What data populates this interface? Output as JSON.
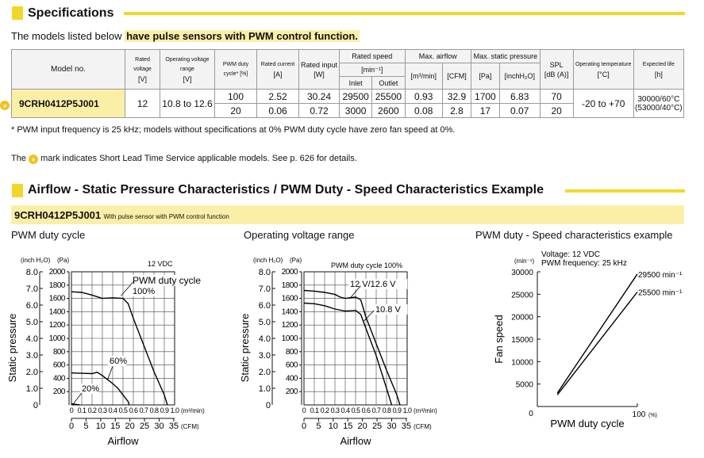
{
  "spec_section": {
    "title": "Specifications"
  },
  "intro": {
    "text": "The models listed below ",
    "highlight": "have pulse sensors with PWM control function."
  },
  "table": {
    "headers": {
      "model_no": "Model no.",
      "rated_voltage": "Rated voltage",
      "rated_voltage_unit": "[V]",
      "op_voltage": "Operating voltage range",
      "op_voltage_unit": "[V]",
      "pwm_duty": "PWM duty",
      "pwm_duty_unit": "cycle* [%]",
      "rated_current": "Rated current",
      "rated_current_unit": "[A]",
      "rated_input": "Rated input",
      "rated_input_unit": "[W]",
      "rated_speed": "Rated speed",
      "rated_speed_unit": "[min⁻¹]",
      "inlet": "Inlet",
      "outlet": "Outlet",
      "max_airflow": "Max. airflow",
      "airflow_unit1": "[m³/min]",
      "airflow_unit2": "[CFM]",
      "max_static": "Max. static pressure",
      "static_unit1": "[Pa]",
      "static_unit2": "[inchH₂O]",
      "spl": "SPL",
      "spl_unit": "[dB (A)]",
      "op_temp": "Operating temperature",
      "op_temp_unit": "[°C]",
      "life": "Expected life",
      "life_unit": "[h]"
    },
    "model": "9CRH0412P5J001",
    "rated_voltage": "12",
    "op_voltage": "10.8 to 12.6",
    "op_temp": "-20 to +70",
    "life1": "30000/60°C",
    "life2": "(53000/40°C)",
    "rows": [
      {
        "pwm": "100",
        "current": "2.52",
        "input": "30.24",
        "inlet": "29500",
        "outlet": "25500",
        "airflow_m3": "0.93",
        "airflow_cfm": "32.9",
        "pa": "1700",
        "inch": "6.83",
        "spl": "70"
      },
      {
        "pwm": "20",
        "current": "0.06",
        "input": "0.72",
        "inlet": "3000",
        "outlet": "2600",
        "airflow_m3": "0.08",
        "airflow_cfm": "2.8",
        "pa": "17",
        "inch": "0.07",
        "spl": "20"
      }
    ]
  },
  "footnote": "* PWM input frequency is 25 kHz; models without specifications at 0% PWM duty cycle have zero fan speed at 0%.",
  "short_lead": {
    "before": "The",
    "after": "mark indicates Short Lead Time Service applicable models. See p. 626 for details.",
    "icon": "double-chevron-icon"
  },
  "chart_section": {
    "title": "Airflow - Static Pressure Characteristics / PWM Duty - Speed Characteristics Example",
    "model": "9CRH0412P5J001",
    "model_sub": "With pulse sensor with PWM control function"
  },
  "charts_text": {
    "c1": {
      "title": "PWM duty cycle",
      "unit_inch": "(inch H₂O)",
      "unit_pa": "(Pa)",
      "volt": "12 VDC",
      "legend": "PWM duty cycle"
    },
    "c2": {
      "title": "Operating voltage range",
      "unit_inch": "(inch H₂O)",
      "unit_pa": "(Pa)",
      "legend": "PWM duty cycle 100%"
    },
    "c3": {
      "title": "PWM duty - Speed characteristics example",
      "cond1": "Voltage: 12 VDC",
      "cond2": "PWM frequency: 25 kHz",
      "unit": "(min⁻¹)"
    }
  },
  "chart_data": [
    {
      "type": "line",
      "title": "PWM duty cycle",
      "xlabel": "Airflow",
      "ylabel": "Static pressure",
      "x_unit": "(m³/min)",
      "x2_unit": "(CFM)",
      "xlim": [
        0,
        1.0
      ],
      "ylim": [
        0,
        2000
      ],
      "y2lim": [
        0,
        8.0
      ],
      "x_ticks": [
        "0",
        "0.1",
        "0.2",
        "0.3",
        "0.4",
        "0.5",
        "0.6",
        "0.7",
        "0.8",
        "0.9",
        "1.0"
      ],
      "x2_ticks": [
        "0",
        "5",
        "10",
        "15",
        "20",
        "25",
        "30",
        "35"
      ],
      "y_ticks": [
        "200",
        "400",
        "600",
        "800",
        "1000",
        "1200",
        "1400",
        "1600",
        "1800",
        "2000"
      ],
      "y2_ticks": [
        "1.0",
        "2.0",
        "3.0",
        "4.0",
        "5.0",
        "6.0",
        "7.0",
        "8.0"
      ],
      "series": [
        {
          "name": "100%",
          "x": [
            0,
            0.1,
            0.2,
            0.3,
            0.4,
            0.5,
            0.55,
            0.6,
            0.7,
            0.8,
            0.9,
            0.93
          ],
          "y": [
            1700,
            1690,
            1650,
            1600,
            1610,
            1600,
            1520,
            1300,
            900,
            500,
            150,
            0
          ]
        },
        {
          "name": "60%",
          "x": [
            0,
            0.1,
            0.2,
            0.25,
            0.3,
            0.35,
            0.4,
            0.45,
            0.5,
            0.55,
            0.56
          ],
          "y": [
            480,
            475,
            470,
            490,
            440,
            380,
            320,
            250,
            150,
            50,
            0
          ]
        },
        {
          "name": "20%",
          "x": [
            0,
            0.02,
            0.05,
            0.08
          ],
          "y": [
            17,
            13,
            6,
            0
          ]
        }
      ],
      "labels": [
        "100%",
        "60%",
        "20%"
      ],
      "grid": true
    },
    {
      "type": "line",
      "title": "Operating voltage range",
      "xlabel": "Airflow",
      "ylabel": "Static pressure",
      "x_unit": "(m³/min)",
      "x2_unit": "(CFM)",
      "xlim": [
        0,
        1.0
      ],
      "ylim": [
        0,
        2000
      ],
      "y2lim": [
        0,
        8.0
      ],
      "x_ticks": [
        "0",
        "0.1",
        "0.2",
        "0.3",
        "0.4",
        "0.5",
        "0.6",
        "0.7",
        "0.8",
        "0.9",
        "1.0"
      ],
      "x2_ticks": [
        "0",
        "5",
        "10",
        "15",
        "20",
        "25",
        "30",
        "35"
      ],
      "y_ticks": [
        "200",
        "400",
        "600",
        "800",
        "1000",
        "1200",
        "1400",
        "1600",
        "1800",
        "2000"
      ],
      "y2_ticks": [
        "1.0",
        "2.0",
        "3.0",
        "4.0",
        "5.0",
        "6.0",
        "7.0",
        "8.0"
      ],
      "series": [
        {
          "name": "12 V/12.6 V",
          "x": [
            0,
            0.1,
            0.2,
            0.3,
            0.35,
            0.4,
            0.5,
            0.55,
            0.6,
            0.7,
            0.8,
            0.9,
            0.93
          ],
          "y": [
            1720,
            1710,
            1690,
            1660,
            1620,
            1600,
            1620,
            1580,
            1320,
            920,
            520,
            150,
            0
          ]
        },
        {
          "name": "10.8 V",
          "x": [
            0,
            0.1,
            0.2,
            0.3,
            0.4,
            0.5,
            0.55,
            0.6,
            0.7,
            0.8,
            0.85
          ],
          "y": [
            1530,
            1520,
            1490,
            1440,
            1410,
            1420,
            1360,
            1150,
            740,
            250,
            0
          ]
        }
      ],
      "labels": [
        "12 V/12.6 V",
        "10.8 V"
      ],
      "grid": true
    },
    {
      "type": "line",
      "title": "PWM duty - Speed characteristics example",
      "xlabel": "PWM duty cycle",
      "ylabel": "Fan speed",
      "x_unit": "(%)",
      "xlim": [
        0,
        100
      ],
      "ylim": [
        0,
        30000
      ],
      "x_ticks": [
        "0",
        "100"
      ],
      "y_ticks": [
        "5000",
        "10000",
        "15000",
        "20000",
        "25000",
        "30000"
      ],
      "series": [
        {
          "name": "29500 min⁻¹",
          "x": [
            20,
            100
          ],
          "y": [
            3000,
            29500
          ]
        },
        {
          "name": "25500 min⁻¹",
          "x": [
            20,
            100
          ],
          "y": [
            2600,
            25500
          ]
        }
      ],
      "labels": [
        "29500 min⁻¹",
        "25500 min⁻¹"
      ],
      "grid": false
    }
  ]
}
